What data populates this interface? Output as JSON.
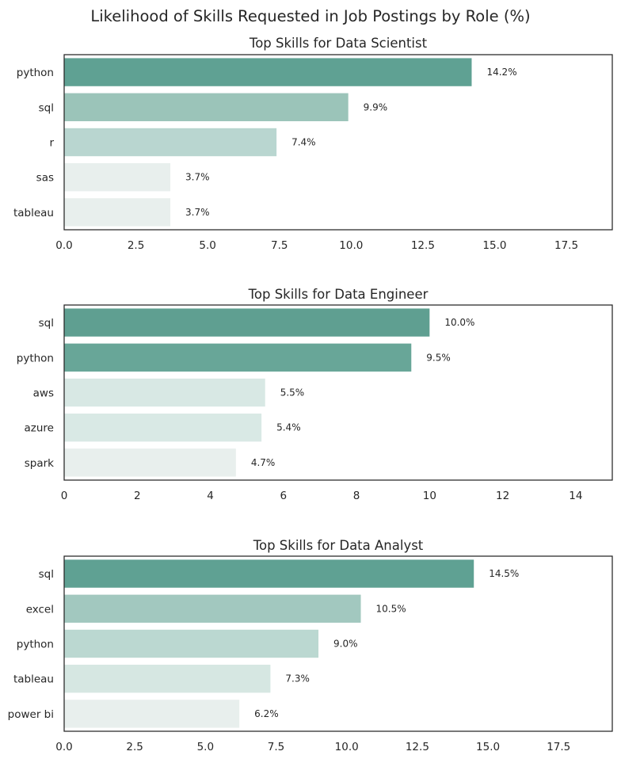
{
  "figure": {
    "title": "Likelihood of Skills Requested in Job Postings by Role (%)"
  },
  "chart_data": [
    {
      "type": "bar",
      "orientation": "horizontal",
      "title": "Top Skills for Data Scientist",
      "categories": [
        "python",
        "sql",
        "r",
        "sas",
        "tableau"
      ],
      "values": [
        14.2,
        9.9,
        7.4,
        3.7,
        3.7
      ],
      "value_labels": [
        "14.2%",
        "9.9%",
        "7.4%",
        "3.7%",
        "3.7%"
      ],
      "xlim": [
        0,
        19.1
      ],
      "xticks": [
        0,
        2.5,
        5,
        7.5,
        10,
        12.5,
        15,
        17.5
      ],
      "xtick_labels": [
        "0.0",
        "2.5",
        "5.0",
        "7.5",
        "10.0",
        "12.5",
        "15.0",
        "17.5"
      ],
      "xlabel": "",
      "ylabel": "",
      "grid": false,
      "colors": [
        "#5fa193",
        "#9bc4b9",
        "#b9d6d0",
        "#e8efed",
        "#e8efed"
      ]
    },
    {
      "type": "bar",
      "orientation": "horizontal",
      "title": "Top Skills for Data Engineer",
      "categories": [
        "sql",
        "python",
        "aws",
        "azure",
        "spark"
      ],
      "values": [
        10.0,
        9.5,
        5.5,
        5.4,
        4.7
      ],
      "value_labels": [
        "10.0%",
        "9.5%",
        "5.5%",
        "5.4%",
        "4.7%"
      ],
      "xlim": [
        0,
        15
      ],
      "xticks": [
        0,
        2,
        4,
        6,
        8,
        10,
        12,
        14
      ],
      "xtick_labels": [
        "0",
        "2",
        "4",
        "6",
        "8",
        "10",
        "12",
        "14"
      ],
      "xlabel": "",
      "ylabel": "",
      "grid": false,
      "colors": [
        "#5f9f91",
        "#68a698",
        "#d8e8e4",
        "#d9e9e5",
        "#e8efed"
      ]
    },
    {
      "type": "bar",
      "orientation": "horizontal",
      "title": "Top Skills for Data Analyst",
      "categories": [
        "sql",
        "excel",
        "python",
        "tableau",
        "power bi"
      ],
      "values": [
        14.5,
        10.5,
        9.0,
        7.3,
        6.2
      ],
      "value_labels": [
        "14.5%",
        "10.5%",
        "9.0%",
        "7.3%",
        "6.2%"
      ],
      "xlim": [
        0,
        19.4
      ],
      "xticks": [
        0,
        2.5,
        5,
        7.5,
        10,
        12.5,
        15,
        17.5
      ],
      "xtick_labels": [
        "0.0",
        "2.5",
        "5.0",
        "7.5",
        "10.0",
        "12.5",
        "15.0",
        "17.5"
      ],
      "xlabel": "",
      "ylabel": "",
      "grid": false,
      "colors": [
        "#5fa193",
        "#a2c8bf",
        "#bbd8d1",
        "#d6e7e2",
        "#e8efed"
      ]
    }
  ]
}
